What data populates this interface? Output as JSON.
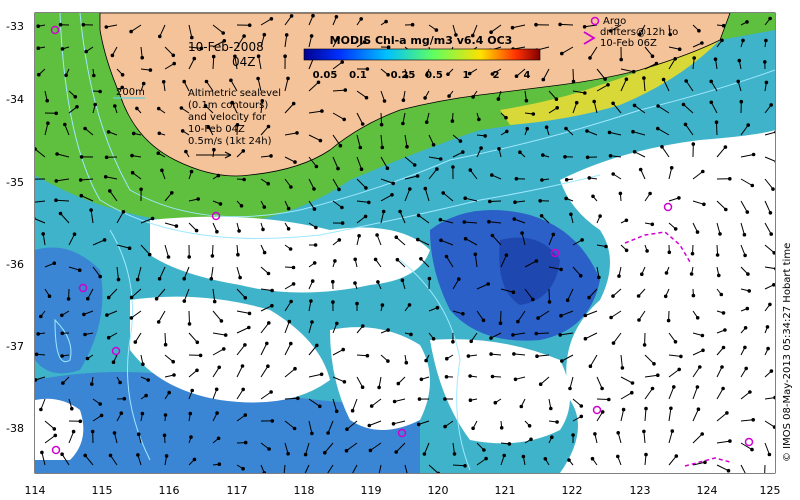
{
  "map": {
    "date": "10-Feb-2008",
    "time": "04Z",
    "colorbar_title": "MODIS Chl-a mg/m3 v6.4 OC3",
    "colorbar_ticks": [
      "0.05",
      "0.1",
      "0.25",
      "0.5",
      "1",
      "2",
      "4"
    ],
    "depth_contour_label": "200m",
    "altimetry_note": [
      "Altimetric sealevel",
      "(0.1m contours)",
      "and velocity for",
      "10-Feb 04Z",
      "0.5m/s (1kt 24h)"
    ],
    "argo_legend": [
      "Argo",
      "drifters@12h to",
      "10-Feb 06Z"
    ],
    "credit": "© IMOS 08-May-2013 05:34:27 Hobart time",
    "lon_ticks": [
      "114",
      "115",
      "116",
      "117",
      "118",
      "119",
      "120",
      "121",
      "122",
      "123",
      "124",
      "125"
    ],
    "lat_ticks": [
      "-33",
      "-34",
      "-35",
      "-36",
      "-37",
      "-38"
    ],
    "colors": {
      "land": "#f5c39a",
      "ocean_high": "#5fbf3f",
      "ocean_mid": "#3fb3c9",
      "ocean_low": "#3a7fd0",
      "ocean_vlow": "#2050c0",
      "cloud": "#ffffff",
      "argo": "#d000d0",
      "contour": "#9fe8ff"
    }
  }
}
